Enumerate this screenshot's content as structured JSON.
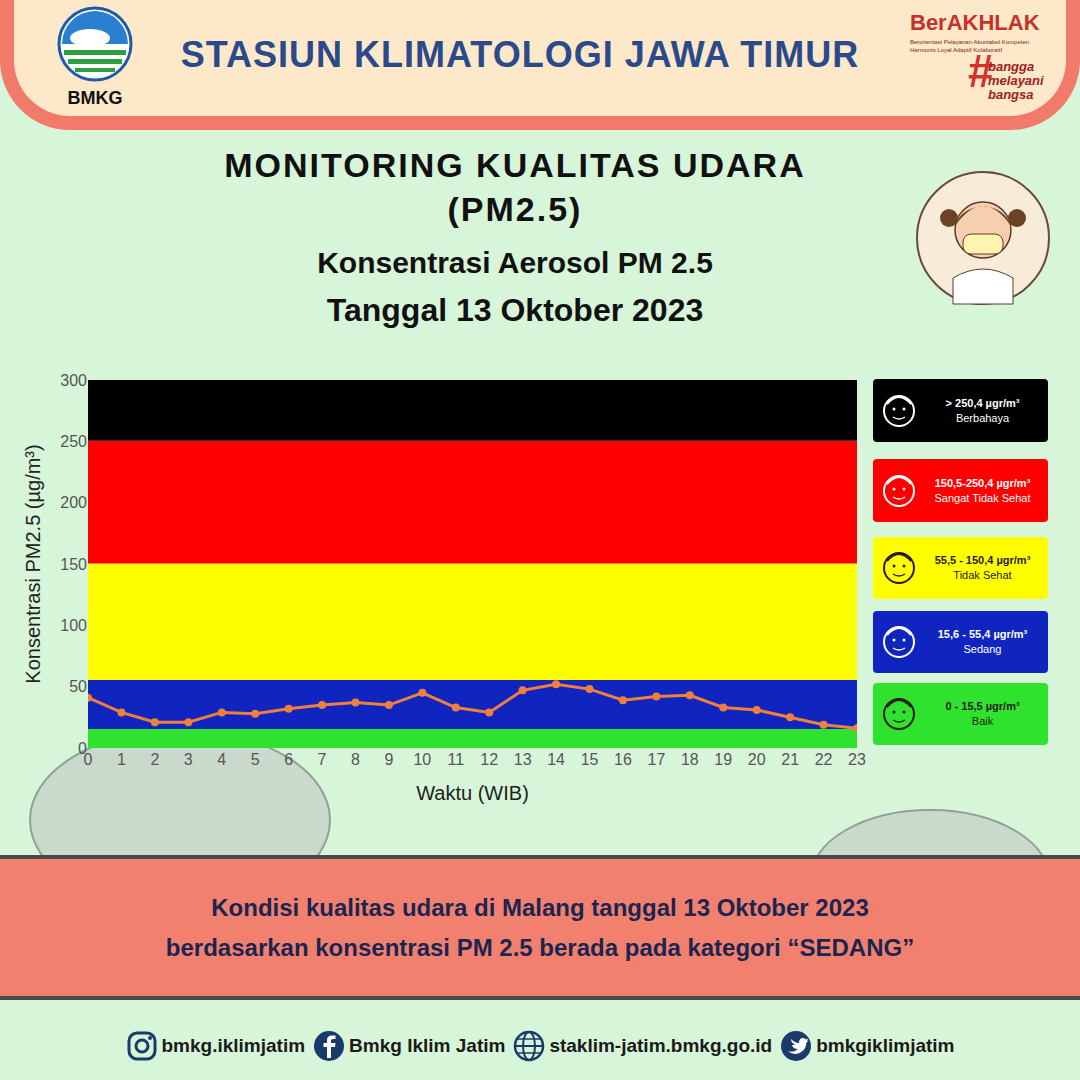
{
  "header": {
    "title": "STASIUN KLIMATOLOGI JAWA TIMUR",
    "logo_text": "BMKG",
    "badge": "BerAKHLAK",
    "badge_tagline": "Berorientasi Pelayanan Akuntabel Kompeten Harmonis Loyal Adaptif Kolaboratif",
    "hashtag": "#bangga melayani bangsa"
  },
  "headings": [
    "MONITORING KUALITAS UDARA",
    "(PM2.5)"
  ],
  "chart_data": {
    "type": "line",
    "title": "Konsentrasi Aerosol PM 2.5",
    "subtitle": "Tanggal 13 Oktober 2023",
    "x_label": "Waktu (WIB)",
    "y_label": "Konsentrasi PM2.5 (µg/m³)",
    "x": [
      0,
      1,
      2,
      3,
      4,
      5,
      6,
      7,
      8,
      9,
      10,
      11,
      12,
      13,
      14,
      15,
      16,
      17,
      18,
      19,
      20,
      21,
      22,
      23
    ],
    "values": [
      41,
      29,
      21,
      21,
      29,
      28,
      32,
      35,
      37,
      35,
      45,
      33,
      29,
      47,
      52,
      48,
      39,
      42,
      43,
      33,
      31,
      25,
      19,
      16
    ],
    "color": "#f07f3c",
    "marker": "circle",
    "line_style": "solid",
    "xlim": [
      0,
      23
    ],
    "xticks": [
      0,
      1,
      2,
      3,
      4,
      5,
      6,
      7,
      8,
      9,
      10,
      11,
      12,
      13,
      14,
      15,
      16,
      17,
      18,
      19,
      20,
      21,
      22,
      23
    ],
    "ylim": [
      0,
      300
    ],
    "yticks": [
      0,
      50,
      100,
      150,
      200,
      250,
      300
    ],
    "grid": false,
    "bands": [
      {
        "from": 0,
        "to": 15.5,
        "color": "#2ee22e",
        "range_label": "0 - 15,5 µgr/m³",
        "name": "Baik"
      },
      {
        "from": 15.5,
        "to": 55.5,
        "color": "#1024c0",
        "range_label": "15,6 - 55,4 µgr/m³",
        "name": "Sedang"
      },
      {
        "from": 55.5,
        "to": 150.5,
        "color": "#ffff00",
        "range_label": "55,5 - 150,4 µgr/m³",
        "name": "Tidak Sehat"
      },
      {
        "from": 150.5,
        "to": 250.5,
        "color": "#ff0000",
        "range_label": "150,5-250,4 µgr/m³",
        "name": "Sangat Tidak Sehat"
      },
      {
        "from": 250.5,
        "to": 300,
        "color": "#000000",
        "range_label": "> 250,4 µgr/m³",
        "name": "Berbahaya"
      }
    ]
  },
  "caption": [
    "Kondisi kualitas udara di Malang tanggal 13 Oktober 2023",
    "berdasarkan konsentrasi PM 2.5 berada pada kategori “SEDANG”"
  ],
  "footer": [
    "bmkg.iklimjatim",
    "Bmkg Iklim Jatim",
    "staklim-jatim.bmkg.go.id",
    "bmkgiklimjatim"
  ]
}
